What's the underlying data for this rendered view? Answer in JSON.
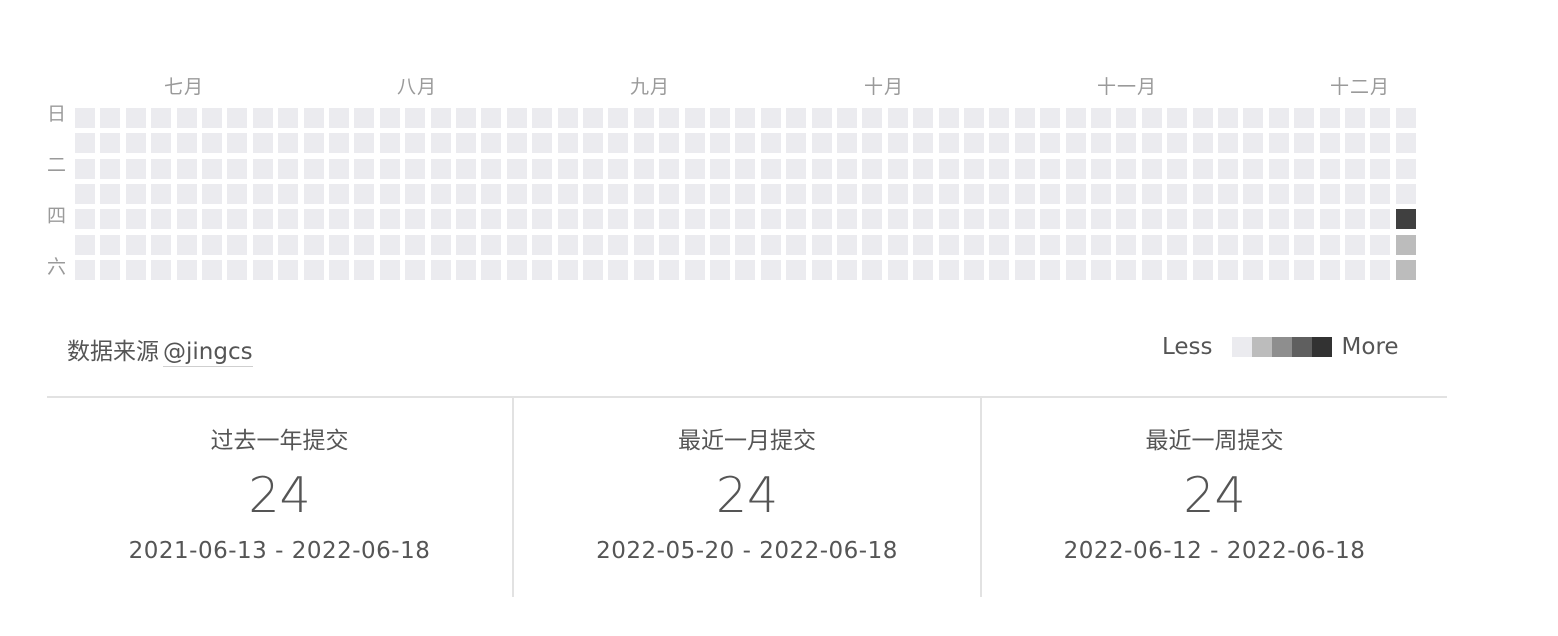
{
  "months": [
    "七月",
    "八月",
    "九月",
    "十月",
    "十一月",
    "十二月"
  ],
  "weekdays": [
    "日",
    "二",
    "四",
    "六"
  ],
  "heatmap": {
    "weeks": 53,
    "days_per_week": 7,
    "level_colors": [
      "#ebebef",
      "#bcbcbc",
      "#8e8e8e",
      "#5f5f5f",
      "#323232"
    ],
    "highlighted_level_color": "#404040",
    "active_cells": [
      {
        "week": 52,
        "day": 4,
        "level": 4
      },
      {
        "week": 52,
        "day": 5,
        "level": 1
      },
      {
        "week": 52,
        "day": 6,
        "level": 1
      }
    ]
  },
  "source": {
    "prefix": "数据来源",
    "link_text": "@jingcs"
  },
  "legend": {
    "less": "Less",
    "more": "More"
  },
  "stats": [
    {
      "label": "过去一年提交",
      "value": "24",
      "range": "2021-06-13 - 2022-06-18"
    },
    {
      "label": "最近一月提交",
      "value": "24",
      "range": "2022-05-20 - 2022-06-18"
    },
    {
      "label": "最近一周提交",
      "value": "24",
      "range": "2022-06-12 - 2022-06-18"
    }
  ]
}
